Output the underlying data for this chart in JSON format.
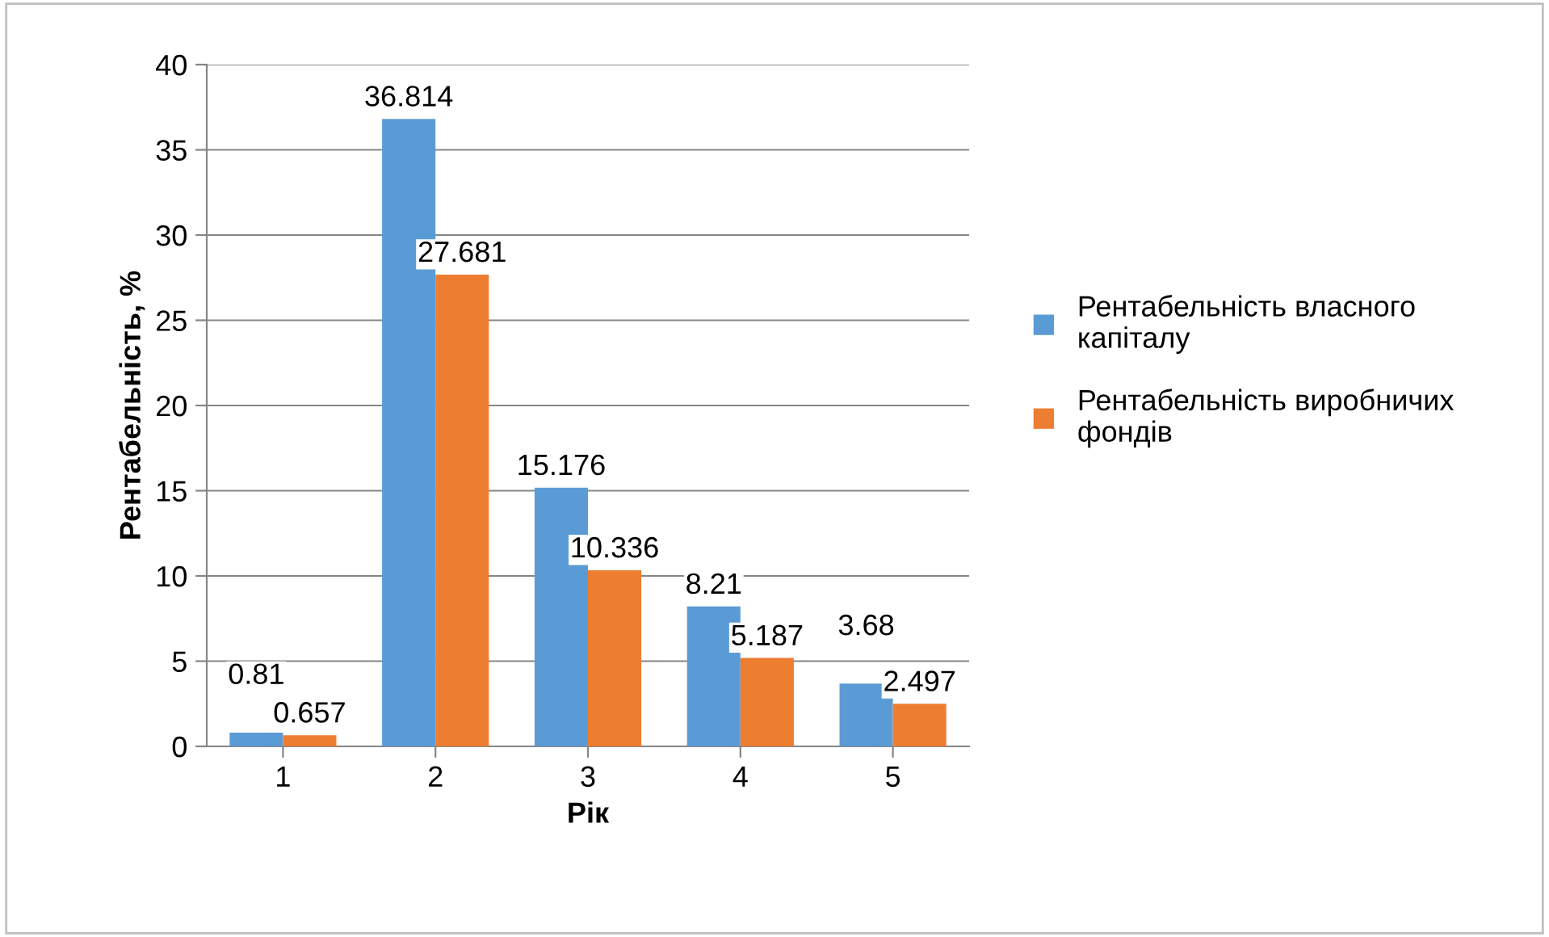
{
  "chart_data": {
    "type": "bar",
    "xlabel": "Рік",
    "ylabel": "Рентабельність, %",
    "categories": [
      "1",
      "2",
      "3",
      "4",
      "5"
    ],
    "series": [
      {
        "name": "Рентабельність власного капіталу",
        "color": "#5b9bd5",
        "values": [
          0.81,
          36.814,
          15.176,
          8.21,
          3.68
        ]
      },
      {
        "name": "Рентабельність виробничих фондів",
        "color": "#ed7d31",
        "values": [
          0.657,
          27.681,
          10.336,
          5.187,
          2.497
        ]
      }
    ],
    "ylim": [
      0,
      40
    ],
    "yticks": [
      0,
      5,
      10,
      15,
      20,
      25,
      30,
      35,
      40
    ],
    "grid": "y",
    "legend": "right",
    "data_labels": true
  }
}
